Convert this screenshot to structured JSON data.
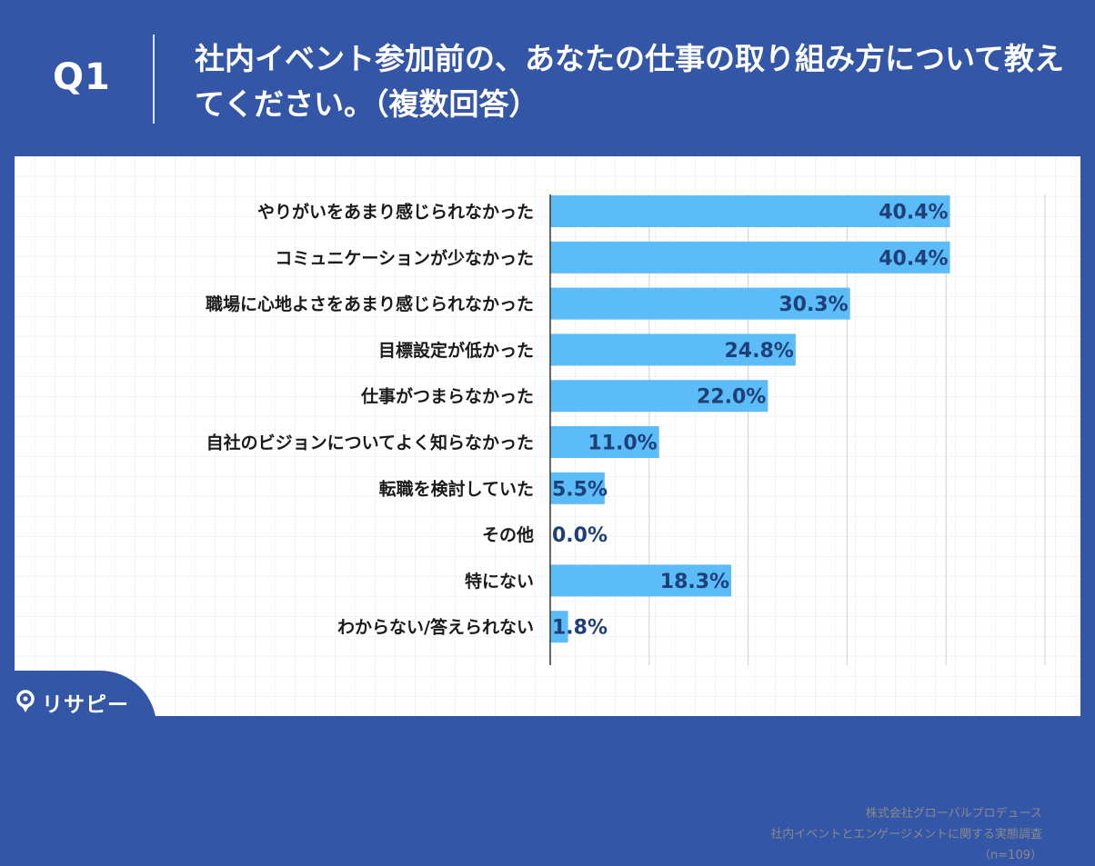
{
  "header": {
    "q_label": "Q1",
    "title": "社内イベント参加前の、あなたの仕事の取り組み方について教えてください。（複数回答）"
  },
  "credit": {
    "line1": "株式会社グローバルプロデュース",
    "line2": "社内イベントとエンゲージメントに関する実態調査",
    "line3": "（n=109）"
  },
  "logo": {
    "text": "リサピー",
    "icon": "magnifier-pin-icon"
  },
  "colors": {
    "bar": "#5bbcf7",
    "value_text": "#1f3f78",
    "header_bg": "#3456a6"
  },
  "chart_data": {
    "type": "bar",
    "orientation": "horizontal",
    "categories": [
      "やりがいをあまり感じられなかった",
      "コミュニケーションが少なかった",
      "職場に心地よさをあまり感じられなかった",
      "目標設定が低かった",
      "仕事がつまらなかった",
      "自社のビジョンについてよく知らなかった",
      "転職を検討していた",
      "その他",
      "特にない",
      "わからない/答えられない"
    ],
    "values": [
      40.4,
      40.4,
      30.3,
      24.8,
      22.0,
      11.0,
      5.5,
      0.0,
      18.3,
      1.8
    ],
    "value_labels": [
      "40.4%",
      "40.4%",
      "30.3%",
      "24.8%",
      "22.0%",
      "11.0%",
      "5.5%",
      "0.0%",
      "18.3%",
      "1.8%"
    ],
    "xlim": [
      0,
      50
    ],
    "grid": "vertical",
    "legend": "none"
  }
}
